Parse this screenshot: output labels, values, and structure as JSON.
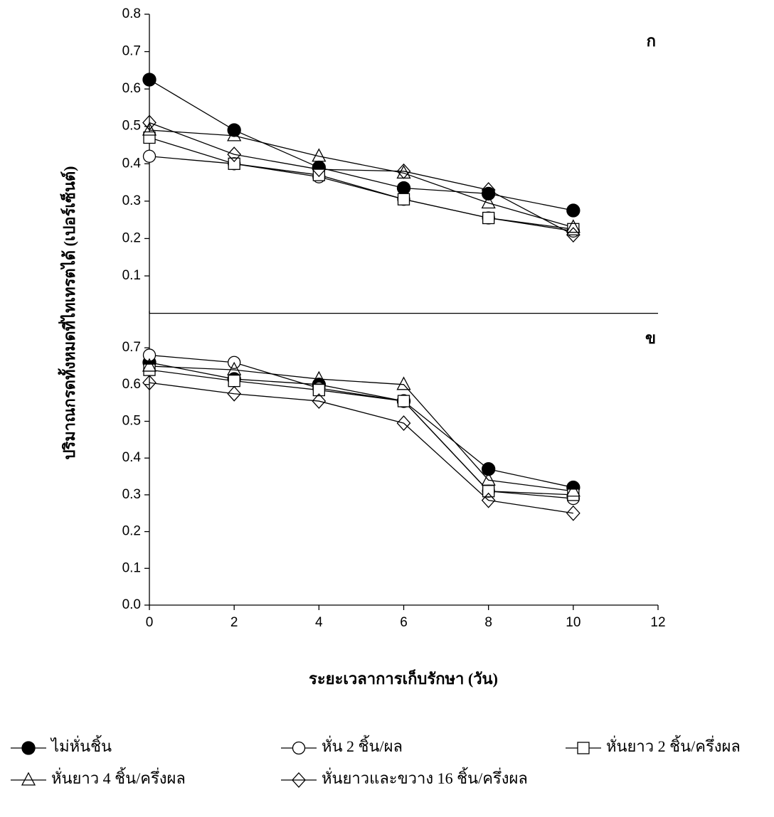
{
  "chart_data": [
    {
      "type": "line",
      "label": "ก",
      "ylabel": "ปริมาณกรดทั้งหมดที่ไทเทรตได้ (เปอร์เซ็นต์)",
      "x": [
        0,
        2,
        4,
        6,
        8,
        10
      ],
      "xlim": [
        0,
        12
      ],
      "ylim": [
        0,
        0.8
      ],
      "yticks": [
        0.1,
        0.2,
        0.3,
        0.4,
        0.5,
        0.6,
        0.7,
        0.8
      ],
      "series": [
        {
          "name": "ไม่หั่นชิ้น",
          "marker": "circle-filled",
          "values": [
            0.625,
            0.49,
            0.39,
            0.335,
            0.32,
            0.275
          ]
        },
        {
          "name": "หั่น 2 ชิ้น/ผล",
          "marker": "circle",
          "values": [
            0.42,
            0.4,
            0.365,
            0.305,
            0.255,
            0.22
          ]
        },
        {
          "name": "หั่นยาว 2 ชิ้น/ครึ่งผล",
          "marker": "square",
          "values": [
            0.47,
            0.4,
            0.37,
            0.305,
            0.255,
            0.225
          ]
        },
        {
          "name": "หั่นยาว 4 ชิ้น/ครึ่งผล",
          "marker": "triangle",
          "values": [
            0.49,
            0.475,
            0.42,
            0.375,
            0.295,
            0.23
          ]
        },
        {
          "name": "หั่นยาวและขวาง 16 ชิ้น/ครึ่งผล",
          "marker": "diamond",
          "values": [
            0.51,
            0.425,
            0.385,
            0.38,
            0.33,
            0.21
          ]
        }
      ]
    },
    {
      "type": "line",
      "label": "ข",
      "xlabel": "ระยะเวลาการเก็บรักษา (วัน)",
      "x": [
        0,
        2,
        4,
        6,
        8,
        10
      ],
      "xlim": [
        0,
        12
      ],
      "xticks": [
        0,
        2,
        4,
        6,
        8,
        10,
        12
      ],
      "ylim": [
        0,
        0.8
      ],
      "yticks": [
        {
          "value": 0,
          "label": "0.0"
        },
        0.1,
        0.2,
        0.3,
        0.4,
        0.5,
        0.6,
        0.7
      ],
      "series": [
        {
          "marker": "circle-filled",
          "values": [
            0.66,
            0.615,
            0.6,
            0.555,
            0.37,
            0.32
          ]
        },
        {
          "marker": "circle",
          "values": [
            0.68,
            0.66,
            0.59,
            0.555,
            0.31,
            0.29
          ]
        },
        {
          "marker": "square",
          "values": [
            0.64,
            0.61,
            0.585,
            0.555,
            0.31,
            0.3
          ]
        },
        {
          "marker": "triangle",
          "values": [
            0.65,
            0.64,
            0.615,
            0.6,
            0.34,
            0.31
          ]
        },
        {
          "marker": "diamond",
          "values": [
            0.605,
            0.575,
            0.555,
            0.495,
            0.285,
            0.25
          ]
        }
      ]
    }
  ]
}
